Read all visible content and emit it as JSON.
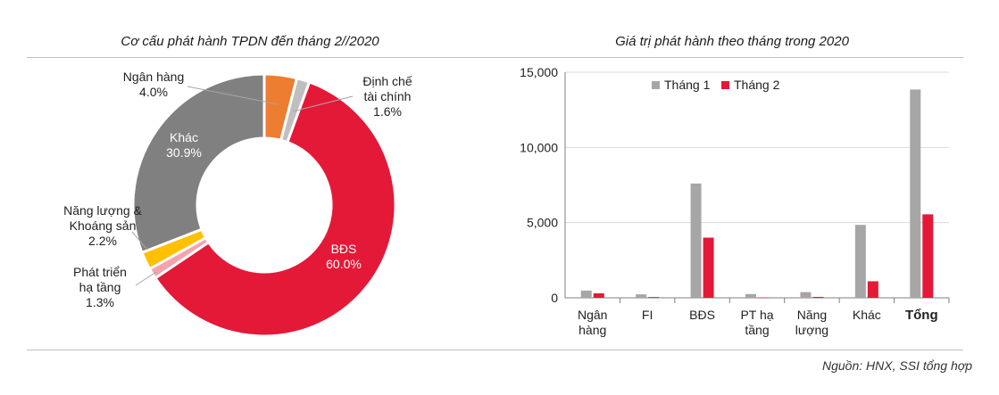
{
  "chart_data": [
    {
      "type": "pie",
      "title": "Cơ cấu phát hành TPDN đến tháng 2//2020",
      "slices": [
        {
          "label": [
            "Ngân hàng"
          ],
          "pct_text": "4.0%",
          "value": 4.0,
          "color": "#ED7D31"
        },
        {
          "label": [
            "Định chế",
            "tài chính"
          ],
          "pct_text": "1.6%",
          "value": 1.6,
          "color": "#BFBFBF"
        },
        {
          "label": [
            "BĐS"
          ],
          "pct_text": "60.0%",
          "value": 60.0,
          "color": "#E31937"
        },
        {
          "label": [
            "Phát triển",
            "hạ tầng"
          ],
          "pct_text": "1.3%",
          "value": 1.3,
          "color": "#F4A3AE"
        },
        {
          "label": [
            "Năng lượng &",
            "Khoáng sản"
          ],
          "pct_text": "2.2%",
          "value": 2.2,
          "color": "#FFC000"
        },
        {
          "label": [
            "Khác"
          ],
          "pct_text": "30.9%",
          "value": 30.9,
          "color": "#808080"
        }
      ]
    },
    {
      "type": "bar",
      "title": "Giá trị phát hành theo tháng trong 2020",
      "categories": [
        [
          "Ngân",
          "hàng"
        ],
        [
          "FI"
        ],
        [
          "BĐS"
        ],
        [
          "PT hạ",
          "tầng"
        ],
        [
          "Năng",
          "lượng"
        ],
        [
          "Khác"
        ],
        [
          "Tổng"
        ]
      ],
      "bold_category_index": 6,
      "series": [
        {
          "name": "Tháng 1",
          "color": "#A6A6A6",
          "values": [
            480,
            230,
            7600,
            250,
            380,
            4850,
            13850
          ]
        },
        {
          "name": "Tháng 2",
          "color": "#E31937",
          "values": [
            300,
            50,
            4000,
            20,
            60,
            1100,
            5550
          ]
        }
      ],
      "yticks": [
        "0",
        "5,000",
        "10,000",
        "15,000"
      ],
      "ytick_values": [
        0,
        5000,
        10000,
        15000
      ],
      "ylim": [
        0,
        15000
      ],
      "legend": "top-left"
    }
  ],
  "source": "Nguồn: HNX, SSI tổng hợp"
}
